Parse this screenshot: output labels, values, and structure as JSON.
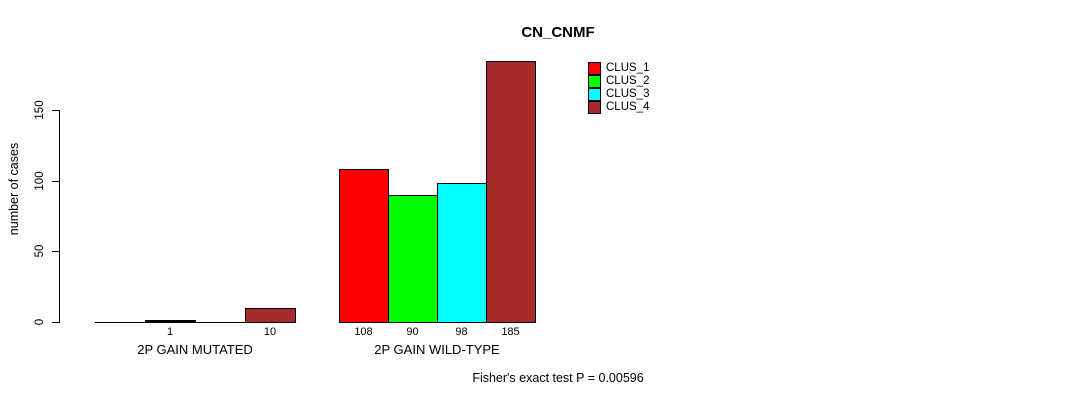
{
  "chart_data": {
    "type": "bar",
    "title": "CN_CNMF",
    "ylabel": "number of cases",
    "xlabel": "",
    "categories": [
      "2P GAIN MUTATED",
      "2P GAIN WILD-TYPE"
    ],
    "series": [
      {
        "name": "CLUS_1",
        "color": "#FF0000",
        "values": [
          0,
          108
        ]
      },
      {
        "name": "CLUS_2",
        "color": "#00FF00",
        "values": [
          1,
          90
        ]
      },
      {
        "name": "CLUS_3",
        "color": "#00FFFF",
        "values": [
          0,
          98
        ]
      },
      {
        "name": "CLUS_4",
        "color": "#A52A2A",
        "values": [
          10,
          185
        ]
      }
    ],
    "bar_value_labels": [
      [
        "",
        "1",
        "",
        "10"
      ],
      [
        "108",
        "90",
        "98",
        "185"
      ]
    ],
    "y_ticks": [
      0,
      50,
      100,
      150
    ],
    "ylim": [
      0,
      190
    ],
    "grid": false,
    "legend_position": "top-right",
    "annotation": "Fisher's exact test P = 0.00596"
  }
}
